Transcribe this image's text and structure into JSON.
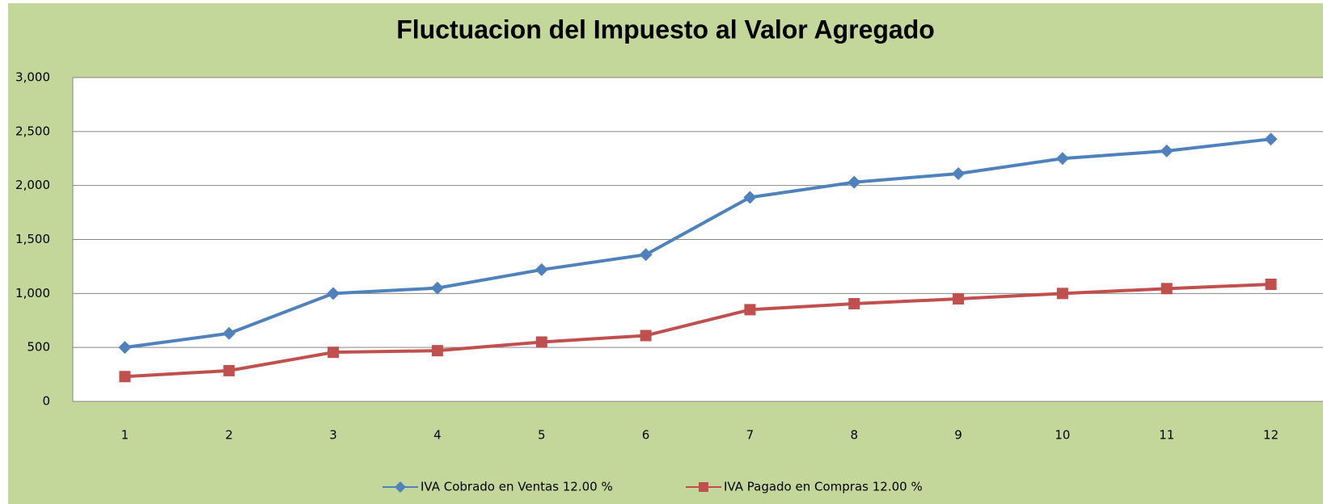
{
  "chart_data": {
    "type": "line",
    "title": "Fluctuacion del Impuesto al Valor Agregado",
    "categories": [
      "1",
      "2",
      "3",
      "4",
      "5",
      "6",
      "7",
      "8",
      "9",
      "10",
      "11",
      "12"
    ],
    "series": [
      {
        "name": "IVA Cobrado en Ventas 12.00 %",
        "color": "#4f81bd",
        "marker": "diamond",
        "values": [
          500,
          630,
          1000,
          1050,
          1220,
          1360,
          1890,
          2030,
          2110,
          2250,
          2320,
          2430
        ]
      },
      {
        "name": "IVA Pagado en Compras 12.00 %",
        "color": "#c0504d",
        "marker": "square",
        "values": [
          230,
          285,
          455,
          470,
          550,
          610,
          850,
          905,
          950,
          1000,
          1045,
          1085
        ]
      }
    ],
    "ylim": [
      0,
      3000
    ],
    "yticks": [
      0,
      500,
      {
        "value": 1000,
        "label": "1,000"
      },
      {
        "value": 1500,
        "label": "1,500"
      },
      {
        "value": 2000,
        "label": "2,000"
      },
      {
        "value": 2500,
        "label": "2,500"
      },
      {
        "value": 3000,
        "label": "3,000"
      }
    ],
    "grid": true,
    "legend": "bottom"
  }
}
